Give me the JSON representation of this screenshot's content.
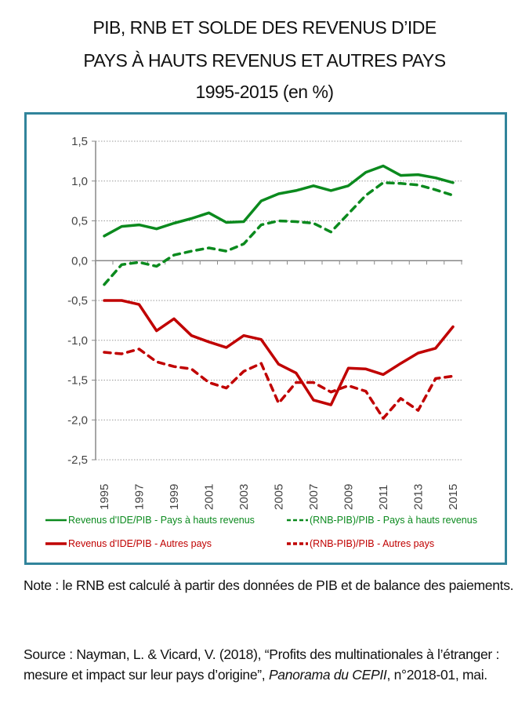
{
  "title": {
    "line1": "PIB, RNB ET SOLDE DES REVENUS D’IDE",
    "line2": "PAYS À HAUTS REVENUS ET AUTRES PAYS",
    "line3": "1995-2015 (en %)"
  },
  "colors": {
    "green": "#0b8a1e",
    "red": "#c00000",
    "border": "#31849b"
  },
  "chart_data": {
    "type": "line",
    "title": "PIB, RNB et solde des revenus d’IDE — Pays à hauts revenus et autres pays, 1995-2015 (en %)",
    "xlabel": "",
    "ylabel": "",
    "ylim": [
      -2.5,
      1.5
    ],
    "yticks": [
      "1,5",
      "1,0",
      "0,5",
      "0,0",
      "-0,5",
      "-1,0",
      "-1,5",
      "-2,0",
      "-2,5"
    ],
    "ytick_values": [
      1.5,
      1.0,
      0.5,
      0.0,
      -0.5,
      -1.0,
      -1.5,
      -2.0,
      -2.5
    ],
    "x": [
      1995,
      1996,
      1997,
      1998,
      1999,
      2000,
      2001,
      2002,
      2003,
      2004,
      2005,
      2006,
      2007,
      2008,
      2009,
      2010,
      2011,
      2012,
      2013,
      2014,
      2015
    ],
    "xtick_labels": [
      "1995",
      "1997",
      "1999",
      "2001",
      "2003",
      "2005",
      "2007",
      "2009",
      "2011",
      "2013",
      "2015"
    ],
    "grid": "horizontal dotted",
    "legend_position": "bottom",
    "series": [
      {
        "name": "Revenus d'IDE/PIB - Pays à hauts revenus",
        "color": "green",
        "style": "solid",
        "values": [
          0.31,
          0.43,
          0.45,
          0.4,
          0.47,
          0.53,
          0.6,
          0.48,
          0.49,
          0.75,
          0.84,
          0.88,
          0.94,
          0.88,
          0.94,
          1.11,
          1.19,
          1.07,
          1.08,
          1.04,
          0.98
        ]
      },
      {
        "name": "(RNB-PIB)/PIB - Pays à hauts revenus",
        "color": "green",
        "style": "dashed",
        "values": [
          -0.3,
          -0.05,
          -0.02,
          -0.07,
          0.07,
          0.12,
          0.16,
          0.12,
          0.21,
          0.45,
          0.5,
          0.49,
          0.47,
          0.36,
          0.59,
          0.82,
          0.98,
          0.97,
          0.95,
          0.89,
          0.82
        ]
      },
      {
        "name": "Revenus d'IDE/PIB - Autres pays",
        "color": "red",
        "style": "solid",
        "values": [
          -0.5,
          -0.5,
          -0.55,
          -0.88,
          -0.73,
          -0.94,
          -1.02,
          -1.09,
          -0.94,
          -0.99,
          -1.3,
          -1.41,
          -1.75,
          -1.81,
          -1.35,
          -1.36,
          -1.43,
          -1.29,
          -1.16,
          -1.1,
          -0.83
        ]
      },
      {
        "name": "(RNB-PIB)/PIB - Autres pays",
        "color": "red",
        "style": "dashed",
        "values": [
          -1.15,
          -1.17,
          -1.11,
          -1.27,
          -1.33,
          -1.36,
          -1.53,
          -1.6,
          -1.39,
          -1.29,
          -1.79,
          -1.53,
          -1.53,
          -1.65,
          -1.57,
          -1.64,
          -1.98,
          -1.73,
          -1.88,
          -1.48,
          -1.45
        ]
      }
    ]
  },
  "notes": {
    "note": "Note : le RNB est calculé à partir des données de PIB et de balance des paiements.",
    "source_prefix": "Source : Nayman, L. & Vicard, V. (2018), “Profits des multinationales à l’étranger : mesure et impact sur leur pays d’origine”, ",
    "source_journal": "Panorama du CEPII",
    "source_suffix": ", n°2018-01, mai."
  }
}
